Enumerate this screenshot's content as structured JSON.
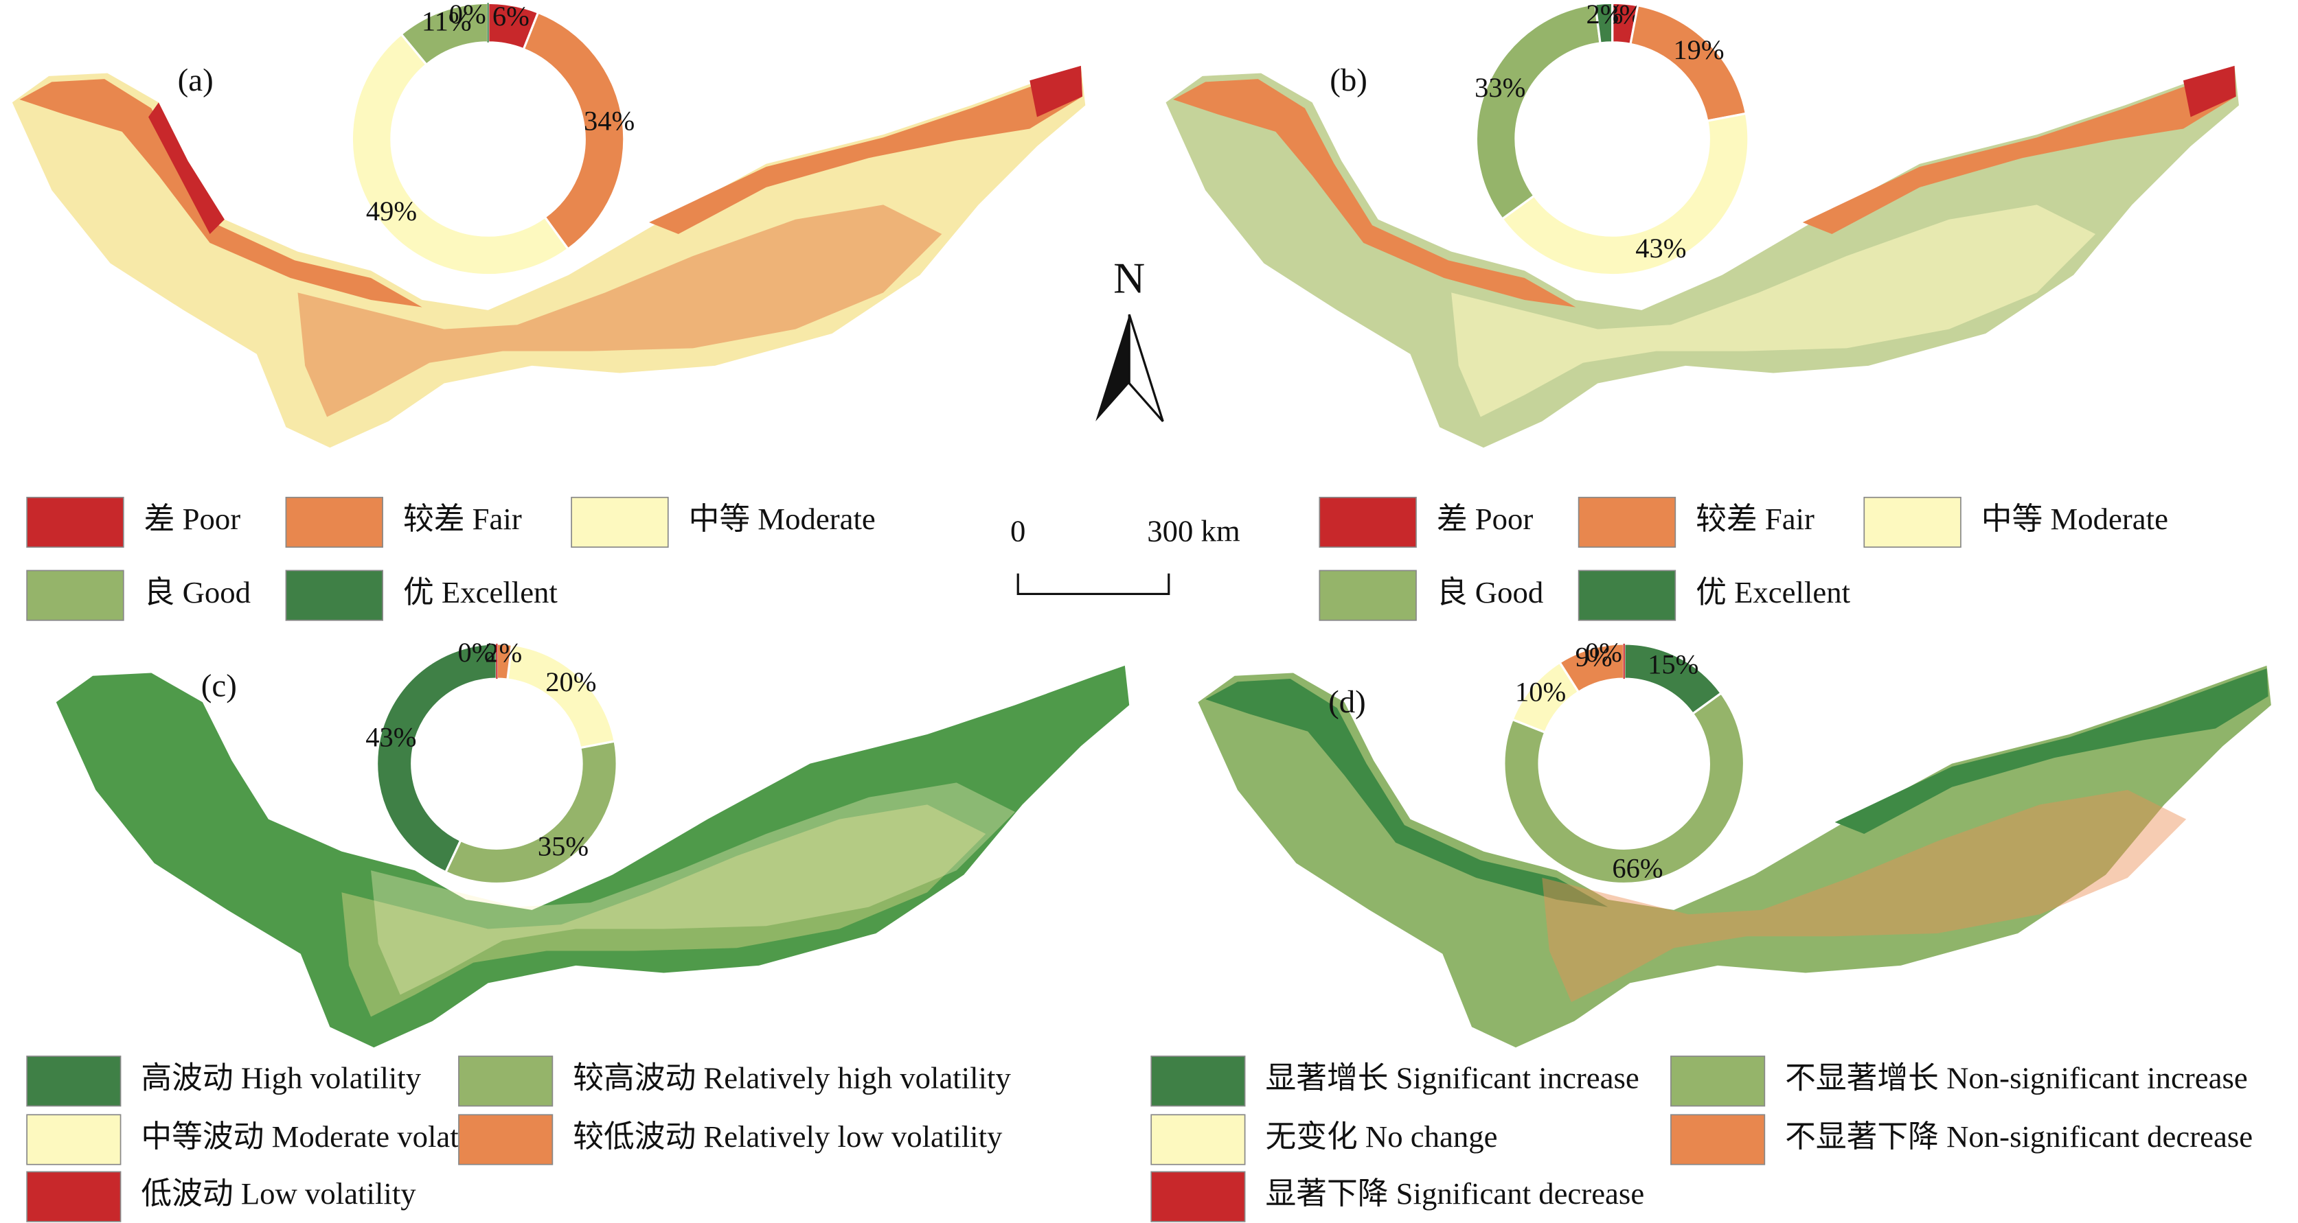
{
  "chart_data": [
    {
      "type": "pie",
      "label": "(a)",
      "direction": "clockwise",
      "categories": [
        "差 Poor",
        "较差 Fair",
        "中等 Moderate",
        "良 Good",
        "优 Excellent"
      ],
      "colors": [
        "#c8282b",
        "#e8874e",
        "#fdf9bf",
        "#95b46a",
        "#3f8046"
      ],
      "values": [
        6,
        34,
        49,
        11,
        0
      ],
      "value_labels": [
        "6%",
        "34%",
        "49%",
        "11%",
        "0%"
      ]
    },
    {
      "type": "pie",
      "label": "(b)",
      "direction": "clockwise",
      "categories": [
        "差 Poor",
        "较差 Fair",
        "中等 Moderate",
        "良 Good",
        "优 Excellent"
      ],
      "colors": [
        "#c8282b",
        "#e8874e",
        "#fdf9bf",
        "#95b46a",
        "#3f8046"
      ],
      "values": [
        3,
        19,
        43,
        33,
        2
      ],
      "value_labels": [
        "3%",
        "19%",
        "43%",
        "33%",
        "2%"
      ]
    },
    {
      "type": "pie",
      "label": "(c)",
      "direction": "counterclockwise",
      "categories": [
        "高波动 High volatility",
        "较高波动 Relatively high volatility",
        "中等波动 Moderate volatility",
        "较低波动 Relatively low volatility",
        "低波动 Low volatility"
      ],
      "colors": [
        "#3f8046",
        "#95b46a",
        "#fdf9bf",
        "#e8874e",
        "#c8282b"
      ],
      "values": [
        43,
        35,
        20,
        2,
        0
      ],
      "value_labels": [
        "43%",
        "35%",
        "20%",
        "2%",
        "0%"
      ]
    },
    {
      "type": "pie",
      "label": "(d)",
      "direction": "clockwise",
      "categories": [
        "显著增长 Significant increase",
        "不显著增长 Non-significant increase",
        "无变化 No change",
        "不显著下降 Non-significant decrease",
        "显著下降 Significant decrease"
      ],
      "colors": [
        "#3f8046",
        "#95b46a",
        "#fdf9bf",
        "#e8874e",
        "#c8282b"
      ],
      "values": [
        15,
        66,
        10,
        9,
        0
      ],
      "value_labels": [
        "15%",
        "66%",
        "10%",
        "9%",
        "0%"
      ]
    }
  ],
  "north_label": "N",
  "scale_bar": {
    "start": "0",
    "end": "300 km"
  }
}
